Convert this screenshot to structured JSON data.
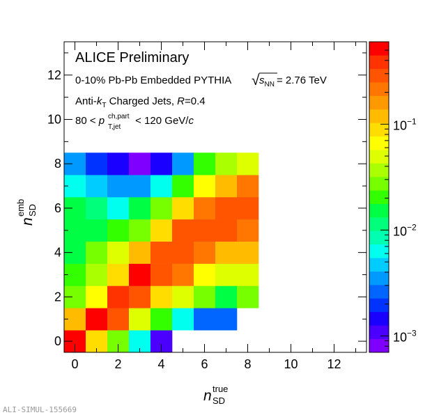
{
  "footer_label": "ALI-SIMUL-155669",
  "chart_data": {
    "type": "heatmap",
    "annotations": {
      "title": "ALICE Preliminary",
      "collision_prefix": "0-10% Pb-Pb Embedded PYTHIA",
      "sqrt_symbol": "√",
      "s_label": "s",
      "s_subscript": "NN",
      "energy_value": "= 2.76 TeV",
      "algo_prefix": "Anti-",
      "algo_k": "k",
      "algo_k_sub": "T",
      "algo_suffix": " Charged Jets, ",
      "radius_R": "R",
      "radius_value": "=0.4",
      "pt_lower": "80 < ",
      "pt_p": "p",
      "pt_superscript": "ch,part",
      "pt_subscript": "T,jet",
      "pt_upper": " < 120 GeV/",
      "pt_c": "c"
    },
    "xlabel": {
      "symbol": "n",
      "superscript": "true",
      "subscript": "SD"
    },
    "ylabel": {
      "symbol": "n",
      "superscript": "emb",
      "subscript": "SD"
    },
    "xlim": [
      -0.5,
      13.5
    ],
    "ylim": [
      -0.5,
      13.5
    ],
    "x_ticks": [
      0,
      2,
      4,
      6,
      8,
      10,
      12
    ],
    "y_ticks": [
      0,
      2,
      4,
      6,
      8,
      10,
      12
    ],
    "x_tick_labels": [
      "0",
      "2",
      "4",
      "6",
      "8",
      "10",
      "12"
    ],
    "y_tick_labels": [
      "0",
      "2",
      "4",
      "6",
      "8",
      "10",
      "12"
    ],
    "z_scale": "log",
    "z_range": [
      0.0007,
      0.6
    ],
    "colorbar_ticks": [
      {
        "value": 0.1,
        "base": "10",
        "exponent": "−1"
      },
      {
        "value": 0.01,
        "base": "10",
        "exponent": "−2"
      },
      {
        "value": 0.001,
        "base": "10",
        "exponent": "−3"
      }
    ],
    "cells": [
      {
        "x": 0,
        "y": 0,
        "z": 0.5
      },
      {
        "x": 1,
        "y": 0,
        "z": 0.1
      },
      {
        "x": 2,
        "y": 0,
        "z": 0.025
      },
      {
        "x": 3,
        "y": 0,
        "z": 0.006
      },
      {
        "x": 4,
        "y": 0,
        "z": 0.0012
      },
      {
        "x": 0,
        "y": 1,
        "z": 0.12
      },
      {
        "x": 1,
        "y": 1,
        "z": 0.5
      },
      {
        "x": 2,
        "y": 1,
        "z": 0.25
      },
      {
        "x": 3,
        "y": 1,
        "z": 0.055
      },
      {
        "x": 4,
        "y": 1,
        "z": 0.02
      },
      {
        "x": 5,
        "y": 1,
        "z": 0.006
      },
      {
        "x": 6,
        "y": 1,
        "z": 0.003
      },
      {
        "x": 7,
        "y": 1,
        "z": 0.003
      },
      {
        "x": 0,
        "y": 2,
        "z": 0.025
      },
      {
        "x": 1,
        "y": 2,
        "z": 0.06
      },
      {
        "x": 2,
        "y": 2,
        "z": 0.4
      },
      {
        "x": 3,
        "y": 2,
        "z": 0.3
      },
      {
        "x": 4,
        "y": 2,
        "z": 0.08
      },
      {
        "x": 5,
        "y": 2,
        "z": 0.05
      },
      {
        "x": 6,
        "y": 2,
        "z": 0.025
      },
      {
        "x": 7,
        "y": 2,
        "z": 0.015
      },
      {
        "x": 8,
        "y": 2,
        "z": 0.025
      },
      {
        "x": 0,
        "y": 3,
        "z": 0.02
      },
      {
        "x": 1,
        "y": 3,
        "z": 0.035
      },
      {
        "x": 2,
        "y": 3,
        "z": 0.1
      },
      {
        "x": 3,
        "y": 3,
        "z": 0.45
      },
      {
        "x": 4,
        "y": 3,
        "z": 0.3
      },
      {
        "x": 5,
        "y": 3,
        "z": 0.2
      },
      {
        "x": 6,
        "y": 3,
        "z": 0.06
      },
      {
        "x": 7,
        "y": 3,
        "z": 0.045
      },
      {
        "x": 8,
        "y": 3,
        "z": 0.045
      },
      {
        "x": 0,
        "y": 4,
        "z": 0.015
      },
      {
        "x": 1,
        "y": 4,
        "z": 0.025
      },
      {
        "x": 2,
        "y": 4,
        "z": 0.045
      },
      {
        "x": 3,
        "y": 4,
        "z": 0.11
      },
      {
        "x": 4,
        "y": 4,
        "z": 0.3
      },
      {
        "x": 5,
        "y": 4,
        "z": 0.3
      },
      {
        "x": 6,
        "y": 4,
        "z": 0.22
      },
      {
        "x": 7,
        "y": 4,
        "z": 0.12
      },
      {
        "x": 8,
        "y": 4,
        "z": 0.12
      },
      {
        "x": 0,
        "y": 5,
        "z": 0.015
      },
      {
        "x": 1,
        "y": 5,
        "z": 0.015
      },
      {
        "x": 2,
        "y": 5,
        "z": 0.02
      },
      {
        "x": 3,
        "y": 5,
        "z": 0.03
      },
      {
        "x": 4,
        "y": 5,
        "z": 0.08
      },
      {
        "x": 5,
        "y": 5,
        "z": 0.3
      },
      {
        "x": 6,
        "y": 5,
        "z": 0.3
      },
      {
        "x": 7,
        "y": 5,
        "z": 0.3
      },
      {
        "x": 8,
        "y": 5,
        "z": 0.2
      },
      {
        "x": 0,
        "y": 6,
        "z": 0.015
      },
      {
        "x": 1,
        "y": 6,
        "z": 0.01
      },
      {
        "x": 2,
        "y": 6,
        "z": 0.006
      },
      {
        "x": 3,
        "y": 6,
        "z": 0.015
      },
      {
        "x": 4,
        "y": 6,
        "z": 0.03
      },
      {
        "x": 5,
        "y": 6,
        "z": 0.08
      },
      {
        "x": 6,
        "y": 6,
        "z": 0.22
      },
      {
        "x": 7,
        "y": 6,
        "z": 0.3
      },
      {
        "x": 8,
        "y": 6,
        "z": 0.3
      },
      {
        "x": 0,
        "y": 7,
        "z": 0.006
      },
      {
        "x": 1,
        "y": 7,
        "z": 0.005
      },
      {
        "x": 2,
        "y": 7,
        "z": 0.004
      },
      {
        "x": 3,
        "y": 7,
        "z": 0.004
      },
      {
        "x": 4,
        "y": 7,
        "z": 0.006
      },
      {
        "x": 5,
        "y": 7,
        "z": 0.02
      },
      {
        "x": 6,
        "y": 7,
        "z": 0.06
      },
      {
        "x": 7,
        "y": 7,
        "z": 0.12
      },
      {
        "x": 8,
        "y": 7,
        "z": 0.2
      },
      {
        "x": 0,
        "y": 8,
        "z": 0.004
      },
      {
        "x": 1,
        "y": 8,
        "z": 0.002
      },
      {
        "x": 2,
        "y": 8,
        "z": 0.0013
      },
      {
        "x": 3,
        "y": 8,
        "z": 0.0009
      },
      {
        "x": 4,
        "y": 8,
        "z": 0.0016
      },
      {
        "x": 5,
        "y": 8,
        "z": 0.004
      },
      {
        "x": 6,
        "y": 8,
        "z": 0.02
      },
      {
        "x": 7,
        "y": 8,
        "z": 0.035
      },
      {
        "x": 8,
        "y": 8,
        "z": 0.05
      }
    ]
  }
}
